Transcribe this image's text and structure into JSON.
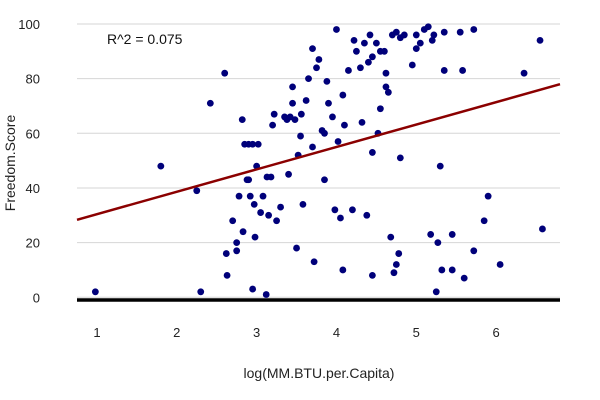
{
  "chart_data": {
    "type": "scatter",
    "title": "",
    "xlabel": "log(MM.BTU.per.Capita)",
    "ylabel": "Freedom.Score",
    "annotation": "R^2 =  0.075",
    "xlim": [
      0.75,
      6.8
    ],
    "ylim": [
      -1,
      100
    ],
    "xticks": [
      1,
      2,
      3,
      4,
      5,
      6
    ],
    "yticks": [
      0,
      20,
      40,
      60,
      80,
      100
    ],
    "grid": true,
    "regression": {
      "intercept": 22.2,
      "slope": 8.2
    },
    "colors": {
      "points": "#00007a",
      "line": "#8b0000",
      "grid": "#d6d6d6",
      "baseline": "#000000"
    },
    "points": [
      [
        0.98,
        2
      ],
      [
        1.8,
        48
      ],
      [
        2.25,
        39
      ],
      [
        2.3,
        2
      ],
      [
        2.42,
        71
      ],
      [
        2.6,
        82
      ],
      [
        2.62,
        16
      ],
      [
        2.63,
        8
      ],
      [
        2.7,
        28
      ],
      [
        2.75,
        20
      ],
      [
        2.75,
        17
      ],
      [
        2.78,
        37
      ],
      [
        2.82,
        65
      ],
      [
        2.83,
        24
      ],
      [
        2.85,
        56
      ],
      [
        2.88,
        43
      ],
      [
        2.9,
        56
      ],
      [
        2.9,
        43
      ],
      [
        2.92,
        37
      ],
      [
        2.95,
        3
      ],
      [
        2.95,
        56
      ],
      [
        2.97,
        34
      ],
      [
        2.98,
        22
      ],
      [
        3.0,
        48
      ],
      [
        3.02,
        56
      ],
      [
        3.05,
        31
      ],
      [
        3.08,
        37
      ],
      [
        3.12,
        1
      ],
      [
        3.13,
        44
      ],
      [
        3.15,
        30
      ],
      [
        3.18,
        44
      ],
      [
        3.2,
        63
      ],
      [
        3.22,
        67
      ],
      [
        3.25,
        28
      ],
      [
        3.3,
        33
      ],
      [
        3.35,
        66
      ],
      [
        3.38,
        65
      ],
      [
        3.4,
        45
      ],
      [
        3.42,
        66
      ],
      [
        3.45,
        71
      ],
      [
        3.45,
        77
      ],
      [
        3.48,
        65
      ],
      [
        3.5,
        18
      ],
      [
        3.52,
        52
      ],
      [
        3.55,
        59
      ],
      [
        3.56,
        67
      ],
      [
        3.58,
        34
      ],
      [
        3.62,
        72
      ],
      [
        3.65,
        80
      ],
      [
        3.7,
        91
      ],
      [
        3.7,
        55
      ],
      [
        3.72,
        13
      ],
      [
        3.75,
        84
      ],
      [
        3.78,
        87
      ],
      [
        3.82,
        61
      ],
      [
        3.85,
        43
      ],
      [
        3.85,
        60
      ],
      [
        3.88,
        79
      ],
      [
        3.9,
        71
      ],
      [
        3.95,
        66
      ],
      [
        3.98,
        32
      ],
      [
        4.0,
        98
      ],
      [
        4.02,
        57
      ],
      [
        4.05,
        29
      ],
      [
        4.08,
        74
      ],
      [
        4.08,
        10
      ],
      [
        4.1,
        63
      ],
      [
        4.15,
        83
      ],
      [
        4.2,
        32
      ],
      [
        4.22,
        94
      ],
      [
        4.25,
        90
      ],
      [
        4.3,
        84
      ],
      [
        4.32,
        64
      ],
      [
        4.35,
        93
      ],
      [
        4.38,
        30
      ],
      [
        4.4,
        86
      ],
      [
        4.42,
        96
      ],
      [
        4.45,
        8
      ],
      [
        4.45,
        53
      ],
      [
        4.45,
        88
      ],
      [
        4.5,
        93
      ],
      [
        4.52,
        60
      ],
      [
        4.55,
        90
      ],
      [
        4.55,
        69
      ],
      [
        4.6,
        90
      ],
      [
        4.62,
        77
      ],
      [
        4.62,
        82
      ],
      [
        4.65,
        75
      ],
      [
        4.68,
        22
      ],
      [
        4.7,
        96
      ],
      [
        4.72,
        9
      ],
      [
        4.75,
        97
      ],
      [
        4.75,
        12
      ],
      [
        4.78,
        16
      ],
      [
        4.8,
        51
      ],
      [
        4.8,
        95
      ],
      [
        4.85,
        96
      ],
      [
        4.95,
        85
      ],
      [
        5.0,
        91
      ],
      [
        5.0,
        96
      ],
      [
        5.05,
        93
      ],
      [
        5.1,
        98
      ],
      [
        5.15,
        99
      ],
      [
        5.18,
        23
      ],
      [
        5.2,
        94
      ],
      [
        5.22,
        96
      ],
      [
        5.25,
        2
      ],
      [
        5.27,
        20
      ],
      [
        5.3,
        48
      ],
      [
        5.32,
        10
      ],
      [
        5.35,
        83
      ],
      [
        5.35,
        97
      ],
      [
        5.45,
        23
      ],
      [
        5.45,
        10
      ],
      [
        5.55,
        97
      ],
      [
        5.58,
        83
      ],
      [
        5.6,
        7
      ],
      [
        5.72,
        98
      ],
      [
        5.72,
        17
      ],
      [
        5.85,
        28
      ],
      [
        5.9,
        37
      ],
      [
        6.05,
        12
      ],
      [
        6.35,
        82
      ],
      [
        6.55,
        94
      ],
      [
        6.58,
        25
      ]
    ]
  }
}
